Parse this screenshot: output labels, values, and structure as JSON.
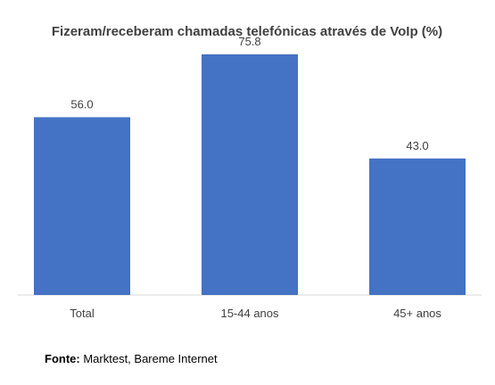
{
  "chart_data": {
    "type": "bar",
    "title": "Fizeram/receberam chamadas telefónicas através de VoIp (%)",
    "categories": [
      "Total",
      "15-44 anos",
      "45+ anos"
    ],
    "values": [
      56.0,
      75.8,
      43.0
    ],
    "value_labels": [
      "56.0",
      "75.8",
      "43.0"
    ],
    "xlabel": "",
    "ylabel": "",
    "ylim": [
      0,
      80
    ],
    "grid": false,
    "legend": "none",
    "bar_color": "#4472C4"
  },
  "source": {
    "label": "Fonte:",
    "text": "Marktest, Bareme Internet"
  }
}
